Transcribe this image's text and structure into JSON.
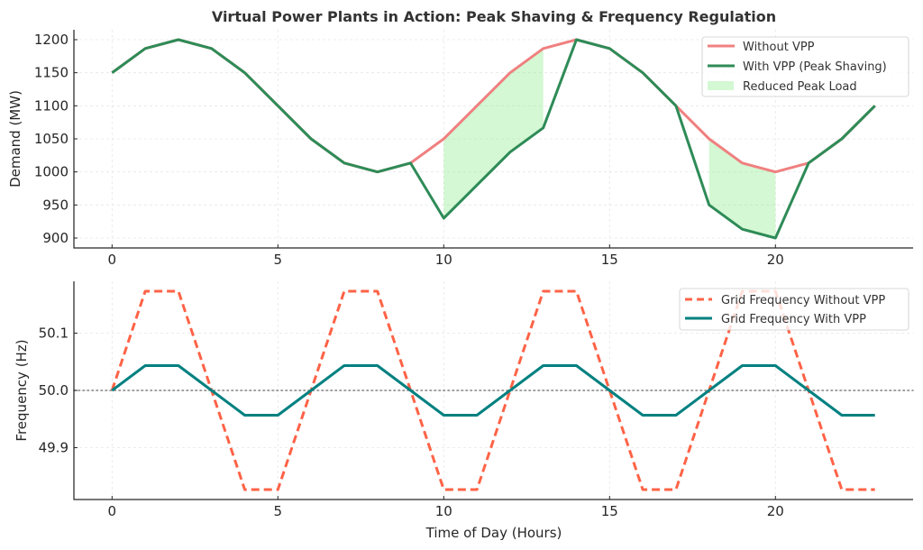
{
  "chart_data": [
    {
      "type": "line",
      "title": "Virtual Power Plants in Action: Peak Shaving & Frequency Regulation",
      "xlabel": "",
      "ylabel": "Demand (MW)",
      "xlim": [
        -1.15,
        24.15
      ],
      "ylim": [
        885,
        1215
      ],
      "grid": true,
      "xticks": [
        0,
        5,
        10,
        15,
        20
      ],
      "xtick_labels": [
        "0",
        "5",
        "10",
        "15",
        "20"
      ],
      "yticks": [
        900,
        950,
        1000,
        1050,
        1100,
        1150,
        1200
      ],
      "ytick_labels": [
        "900",
        "950",
        "1000",
        "1050",
        "1100",
        "1150",
        "1200"
      ],
      "legend_position": "top-right",
      "x": [
        0,
        1,
        2,
        3,
        4,
        5,
        6,
        7,
        8,
        9,
        10,
        11,
        12,
        13,
        14,
        15,
        16,
        17,
        18,
        19,
        20,
        21,
        22,
        23
      ],
      "series": [
        {
          "name": "Without VPP",
          "color": "#F08080",
          "style": "solid",
          "values": [
            1150,
            1186.6,
            1200,
            1186.6,
            1150,
            1100,
            1050,
            1013.4,
            1000,
            1013.4,
            1050,
            1100,
            1150,
            1186.6,
            1200,
            1186.6,
            1150,
            1100,
            1050,
            1013.4,
            1000,
            1013.4,
            1050,
            1100
          ]
        },
        {
          "name": "With VPP (Peak Shaving)",
          "color": "#2E8B57",
          "style": "solid",
          "values": [
            1150,
            1186.6,
            1200,
            1186.6,
            1150,
            1100,
            1050,
            1013.4,
            1000,
            1013.4,
            930,
            980,
            1030,
            1066.6,
            1200,
            1186.6,
            1150,
            1100,
            950,
            913.4,
            900,
            1013.4,
            1050,
            1100
          ]
        }
      ],
      "fill_between": {
        "name": "Reduced Peak Load",
        "color": "#90EE90",
        "opacity": 0.4,
        "ranges": [
          [
            10,
            13
          ],
          [
            18,
            20
          ]
        ]
      }
    },
    {
      "type": "line",
      "title": "",
      "xlabel": "Time of Day (Hours)",
      "ylabel": "Frequency (Hz)",
      "xlim": [
        -1.15,
        24.15
      ],
      "ylim": [
        49.8095,
        50.1905
      ],
      "grid": true,
      "xticks": [
        0,
        5,
        10,
        15,
        20
      ],
      "xtick_labels": [
        "0",
        "5",
        "10",
        "15",
        "20"
      ],
      "yticks": [
        49.9,
        50.0,
        50.1
      ],
      "ytick_labels": [
        "49.9",
        "50.0",
        "50.1"
      ],
      "legend_position": "top-right",
      "reference_line": {
        "y": 50.0,
        "color": "#808080",
        "style": "dotted"
      },
      "x": [
        0,
        1,
        2,
        3,
        4,
        5,
        6,
        7,
        8,
        9,
        10,
        11,
        12,
        13,
        14,
        15,
        16,
        17,
        18,
        19,
        20,
        21,
        22,
        23
      ],
      "series": [
        {
          "name": "Grid Frequency Without VPP",
          "color": "#FF6347",
          "style": "dashed",
          "values": [
            50.0,
            50.1732,
            50.1732,
            50.0,
            49.8268,
            49.8268,
            50.0,
            50.1732,
            50.1732,
            50.0,
            49.8268,
            49.8268,
            50.0,
            50.1732,
            50.1732,
            50.0,
            49.8268,
            49.8268,
            50.0,
            50.1732,
            50.1732,
            50.0,
            49.8268,
            49.8268
          ]
        },
        {
          "name": "Grid Frequency With VPP",
          "color": "#008080",
          "style": "solid",
          "values": [
            50.0,
            50.0433,
            50.0433,
            50.0,
            49.9567,
            49.9567,
            50.0,
            50.0433,
            50.0433,
            50.0,
            49.9567,
            49.9567,
            50.0,
            50.0433,
            50.0433,
            50.0,
            49.9567,
            49.9567,
            50.0,
            50.0433,
            50.0433,
            50.0,
            49.9567,
            49.9567
          ]
        }
      ]
    }
  ]
}
